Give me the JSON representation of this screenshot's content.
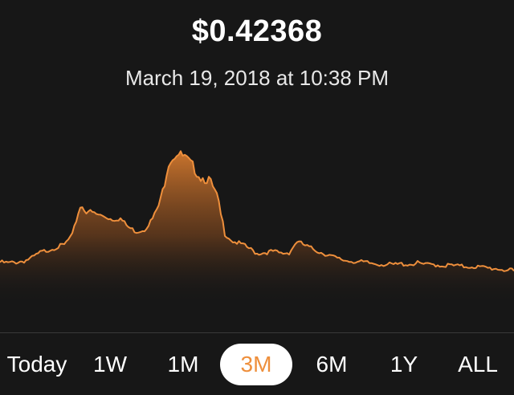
{
  "price": "$0.42368",
  "timestamp": "March 19, 2018 at 10:38 PM",
  "colors": {
    "accent": "#ee8f3c",
    "background": "#171717",
    "active_bg": "#ffffff"
  },
  "ranges": [
    {
      "label": "Today",
      "active": false
    },
    {
      "label": "1W",
      "active": false
    },
    {
      "label": "1M",
      "active": false
    },
    {
      "label": "3M",
      "active": true
    },
    {
      "label": "6M",
      "active": false
    },
    {
      "label": "1Y",
      "active": false
    },
    {
      "label": "ALL",
      "active": false
    }
  ],
  "chart_data": {
    "type": "area",
    "x": [
      0,
      1,
      2,
      3,
      4,
      5,
      6,
      7,
      8,
      9,
      10,
      11,
      12,
      13,
      14,
      15,
      16,
      17,
      18,
      19,
      20,
      21,
      22,
      23,
      24,
      25,
      26,
      27,
      28,
      29,
      30,
      31,
      32,
      33,
      34,
      35,
      36,
      37,
      38,
      39,
      40,
      41,
      42,
      43,
      44,
      45,
      46,
      47,
      48,
      49,
      50,
      51,
      52,
      53,
      54,
      55,
      56,
      57,
      58,
      59,
      60,
      61,
      62,
      63,
      64
    ],
    "values": [
      0.33,
      0.328,
      0.33,
      0.333,
      0.34,
      0.352,
      0.358,
      0.364,
      0.37,
      0.392,
      0.46,
      0.448,
      0.44,
      0.435,
      0.428,
      0.43,
      0.41,
      0.4,
      0.405,
      0.43,
      0.47,
      0.56,
      0.58,
      0.57,
      0.55,
      0.525,
      0.52,
      0.48,
      0.395,
      0.378,
      0.372,
      0.362,
      0.35,
      0.352,
      0.355,
      0.35,
      0.352,
      0.378,
      0.368,
      0.36,
      0.352,
      0.346,
      0.338,
      0.334,
      0.332,
      0.33,
      0.328,
      0.326,
      0.325,
      0.324,
      0.326,
      0.325,
      0.328,
      0.324,
      0.325,
      0.322,
      0.323,
      0.321,
      0.32,
      0.32,
      0.318,
      0.316,
      0.315,
      0.312,
      0.31
    ],
    "color": "#ee8f3c"
  }
}
